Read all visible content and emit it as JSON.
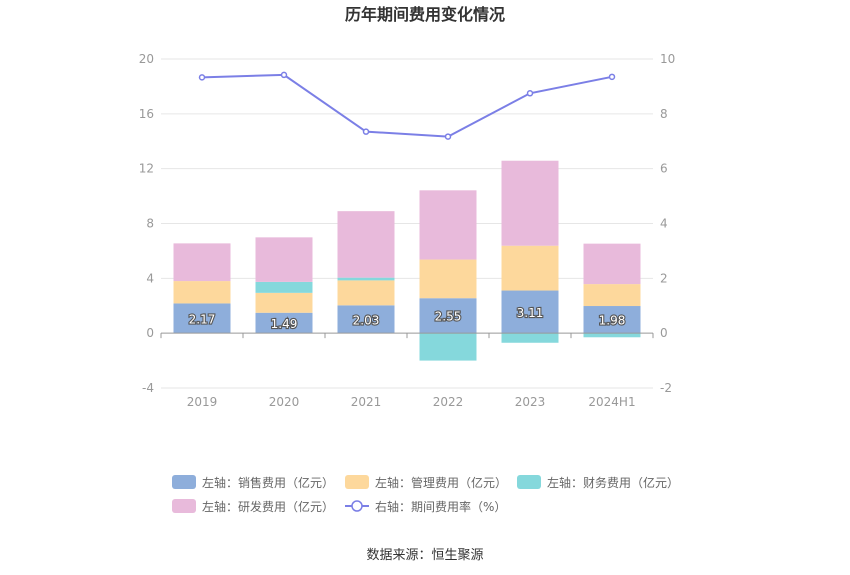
{
  "chart_data": {
    "type": "bar",
    "title": "历年期间费用变化情况",
    "categories": [
      "2019",
      "2020",
      "2021",
      "2022",
      "2023",
      "2024H1"
    ],
    "left_axis": {
      "min": -4,
      "max": 20,
      "ticks": [
        -4,
        0,
        4,
        8,
        12,
        16,
        20
      ]
    },
    "right_axis": {
      "min": -2,
      "max": 10,
      "ticks": [
        -2,
        0,
        2,
        4,
        6,
        8,
        10
      ]
    },
    "series": [
      {
        "name": "左轴：销售费用（亿元）",
        "axis": "left",
        "kind": "bar",
        "color": "#8eaedb",
        "values": [
          2.17,
          1.49,
          2.03,
          2.55,
          3.11,
          1.98
        ],
        "show_labels": true
      },
      {
        "name": "左轴：管理费用（亿元）",
        "axis": "left",
        "kind": "bar",
        "color": "#fdd89c",
        "values": [
          1.63,
          1.45,
          1.82,
          2.82,
          3.27,
          1.6
        ]
      },
      {
        "name": "左轴：财务费用（亿元）",
        "axis": "left",
        "kind": "bar",
        "color": "#85d8dc",
        "values": [
          0.0,
          0.8,
          0.2,
          -2.0,
          -0.7,
          -0.3
        ]
      },
      {
        "name": "左轴：研发费用（亿元）",
        "axis": "left",
        "kind": "bar",
        "color": "#e8badb",
        "values": [
          2.75,
          3.25,
          4.85,
          5.05,
          6.2,
          2.95
        ]
      },
      {
        "name": "右轴：期间费用率（%）",
        "axis": "right",
        "kind": "line",
        "color": "#7b7fe6",
        "values": [
          9.33,
          9.42,
          7.35,
          7.17,
          8.75,
          9.35
        ]
      }
    ]
  },
  "source_text": "数据来源：恒生聚源"
}
